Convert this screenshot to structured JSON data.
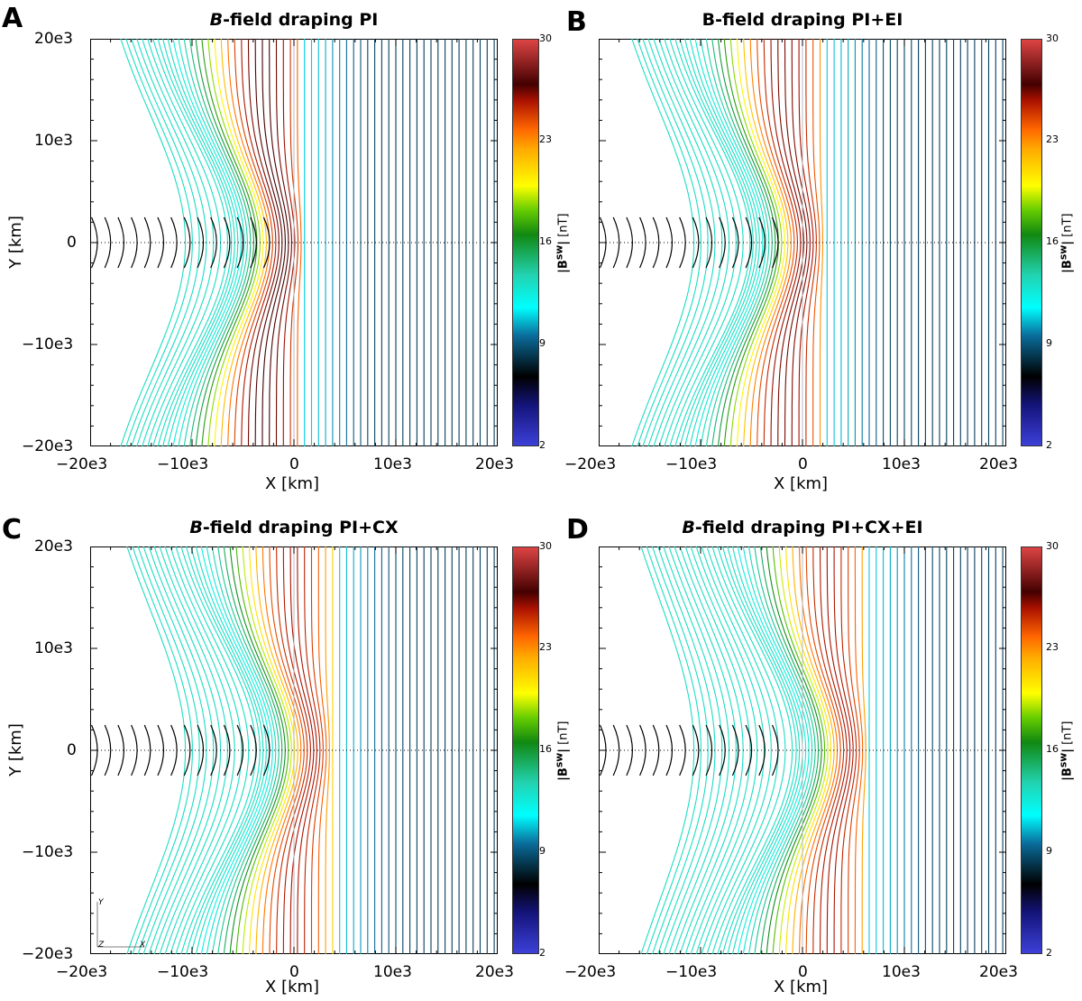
{
  "chart_data": [
    {
      "type": "streamline",
      "panel": "A",
      "title_italic": "B",
      "title_rest": "-field draping PI",
      "xlabel": "X [km]",
      "ylabel": "Y [km]",
      "xlim": [
        -20000,
        20000
      ],
      "ylim": [
        -20000,
        20000
      ],
      "xticks": [
        "−20e3",
        "−10e3",
        "0",
        "10e3",
        "20e3"
      ],
      "yticks": [
        "20e3",
        "10e3",
        "0",
        "−10e3",
        "−20e3"
      ],
      "draping_front_x": 1000,
      "draping_peak_nT": 27,
      "colorbar": {
        "label_bold": "|B",
        "label_sup": "sw",
        "label_end": "|",
        "units": " [nT]",
        "ticks": [
          "30",
          "23",
          "16",
          "9",
          "2"
        ],
        "range": [
          2,
          30
        ]
      }
    },
    {
      "type": "streamline",
      "panel": "B",
      "title_italic": "",
      "title_rest": "B-field draping PI+EI",
      "xlabel": "X [km]",
      "ylabel": "",
      "xlim": [
        -20000,
        20000
      ],
      "ylim": [
        -20000,
        20000
      ],
      "xticks": [
        "−20e3",
        "−10e3",
        "0",
        "10e3",
        "20e3"
      ],
      "yticks": [],
      "draping_front_x": 2200,
      "draping_peak_nT": 26,
      "colorbar": {
        "label_bold": "|B",
        "label_sup": "sw",
        "label_end": "|",
        "units": " [nT]",
        "ticks": [
          "30",
          "23",
          "16",
          "9",
          "2"
        ],
        "range": [
          2,
          30
        ]
      }
    },
    {
      "type": "streamline",
      "panel": "C",
      "title_italic": "B",
      "title_rest": "-field draping PI+CX",
      "xlabel": "X [km]",
      "ylabel": "Y [km]",
      "xlim": [
        -20000,
        20000
      ],
      "ylim": [
        -20000,
        20000
      ],
      "xticks": [
        "−20e3",
        "−10e3",
        "0",
        "10e3",
        "20e3"
      ],
      "yticks": [
        "20e3",
        "10e3",
        "0",
        "−10e3",
        "−20e3"
      ],
      "draping_front_x": 3800,
      "draping_peak_nT": 25,
      "colorbar": {
        "label_bold": "|B",
        "label_sup": "sw",
        "label_end": "|",
        "units": " [nT]",
        "ticks": [
          "30",
          "23",
          "16",
          "9",
          "2"
        ],
        "range": [
          2,
          30
        ]
      },
      "inset_axes": [
        "Y",
        "Z",
        "X"
      ]
    },
    {
      "type": "streamline",
      "panel": "D",
      "title_italic": "B",
      "title_rest": "-field draping PI+CX+EI",
      "xlabel": "X [km]",
      "ylabel": "",
      "xlim": [
        -20000,
        20000
      ],
      "ylim": [
        -20000,
        20000
      ],
      "xticks": [
        "−20e3",
        "−10e3",
        "0",
        "10e3",
        "20e3"
      ],
      "yticks": [],
      "draping_front_x": 6500,
      "draping_peak_nT": 25,
      "colorbar": {
        "label_bold": "|B",
        "label_sup": "sw",
        "label_end": "|",
        "units": " [nT]",
        "ticks": [
          "30",
          "23",
          "16",
          "9",
          "2"
        ],
        "range": [
          2,
          30
        ]
      }
    }
  ]
}
